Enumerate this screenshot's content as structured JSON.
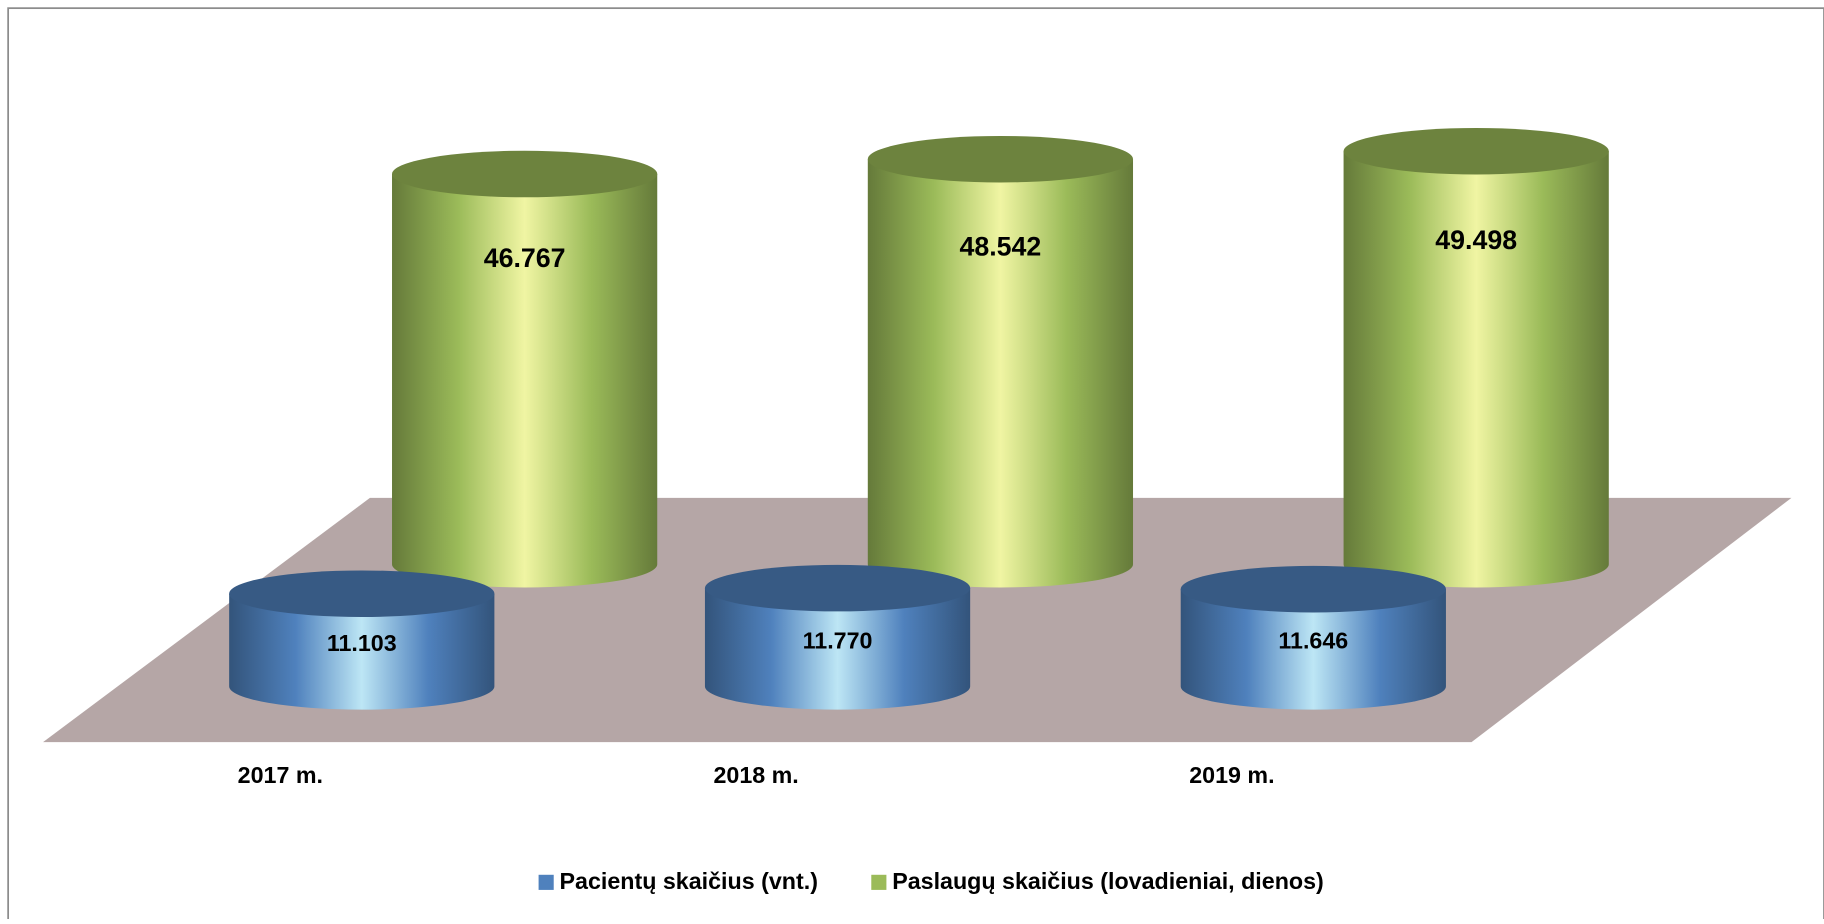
{
  "chart_data": {
    "type": "bar3d",
    "categories": [
      "2017 m.",
      "2018 m.",
      "2019 m."
    ],
    "series": [
      {
        "name": "Pacientų skaičius (vnt.)",
        "color": "#4f81bd",
        "values": [
          11103,
          11770,
          11646
        ],
        "value_labels": [
          "11.103",
          "11.770",
          "11.646"
        ]
      },
      {
        "name": "Paslaugų skaičius (lovadieniai, dienos)",
        "color": "#9bbb59",
        "values": [
          46767,
          48542,
          49498
        ],
        "value_labels": [
          "46.767",
          "48.542",
          "49.498"
        ]
      }
    ],
    "legend": "bottom"
  }
}
